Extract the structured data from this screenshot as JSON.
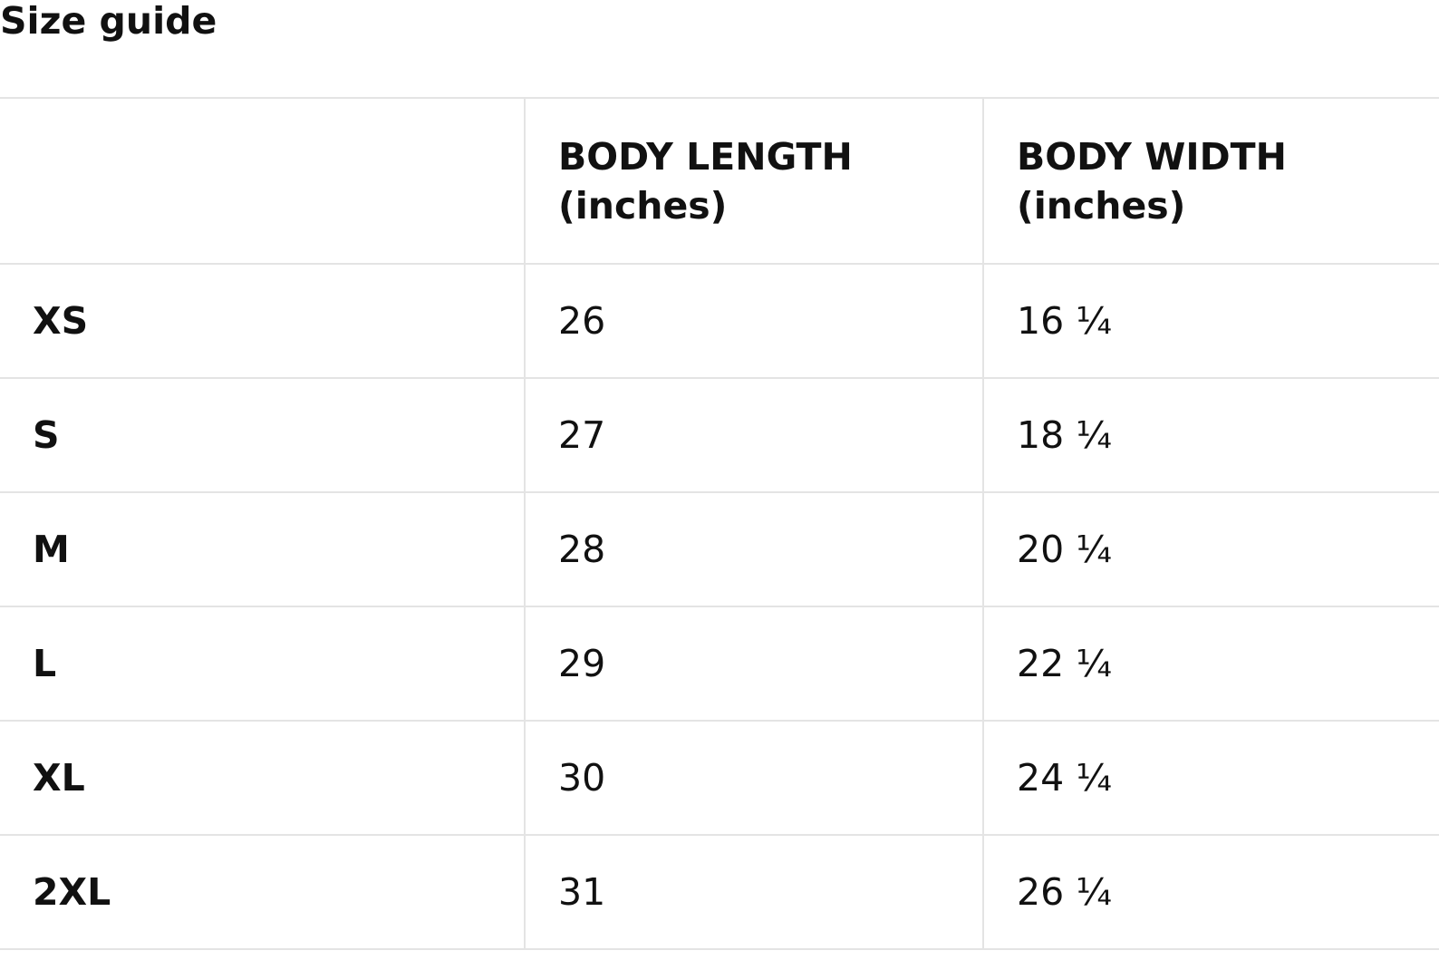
{
  "title": "Size guide",
  "table": {
    "headers": [
      {
        "line1": "",
        "line2": ""
      },
      {
        "line1": "BODY LENGTH",
        "line2": "(inches)"
      },
      {
        "line1": "BODY WIDTH",
        "line2": "(inches)"
      }
    ],
    "rows": [
      {
        "size": "XS",
        "length": "26",
        "width": "16 ¼"
      },
      {
        "size": "S",
        "length": "27",
        "width": "18 ¼"
      },
      {
        "size": "M",
        "length": "28",
        "width": "20 ¼"
      },
      {
        "size": "L",
        "length": "29",
        "width": "22 ¼"
      },
      {
        "size": "XL",
        "length": "30",
        "width": "24 ¼"
      },
      {
        "size": "2XL",
        "length": "31",
        "width": "26 ¼"
      }
    ]
  },
  "colors": {
    "text": "#111111",
    "border": "#e4e4e4",
    "background": "#ffffff"
  }
}
